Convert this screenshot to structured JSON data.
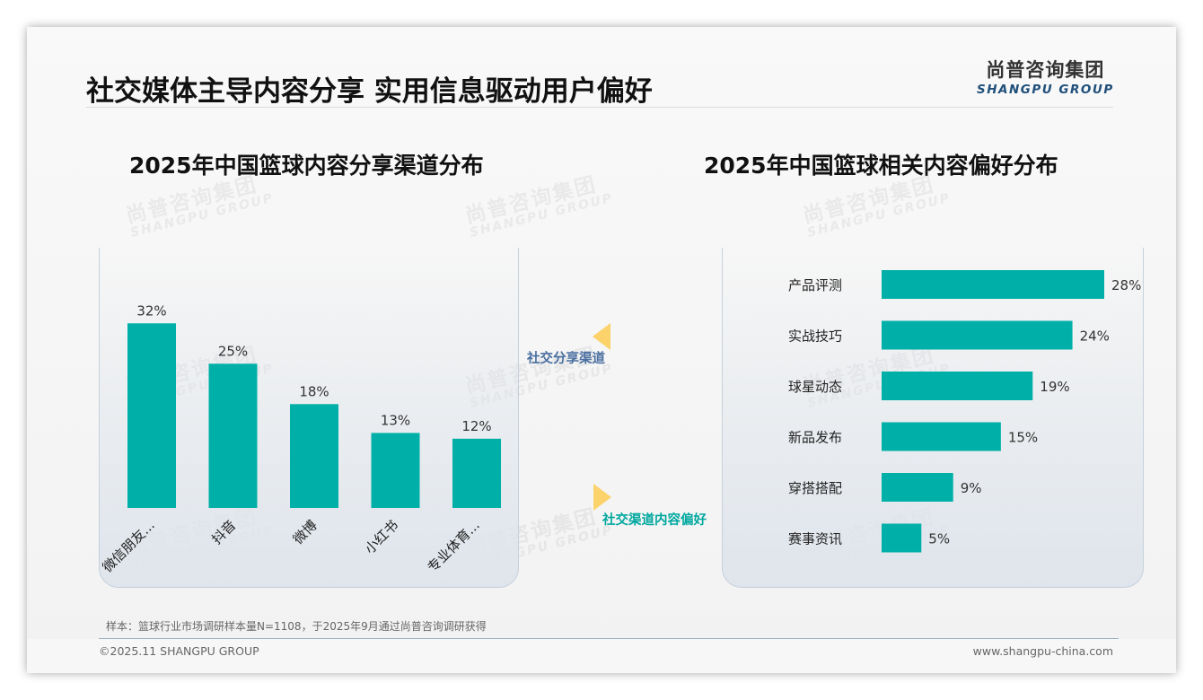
{
  "page": {
    "title": "社交媒体主导内容分享 实用信息驱动用户偏好",
    "logo_cn": "尚普咨询集团",
    "logo_en": "SHANGPU GROUP",
    "watermark_cn": "尚普咨询集团",
    "watermark_en": "SHANGPU GROUP",
    "flow_label_1": "社交分享渠道",
    "flow_label_2": "社交渠道内容偏好",
    "note": "样本：篮球行业市场调研样本量N=1108，于2025年9月通过尚普咨询调研获得",
    "footer_left": "©2025.11 SHANGPU GROUP",
    "footer_right": "www.shangpu-china.com"
  },
  "colors": {
    "bar": "#00b0a8",
    "accent_yellow": "#fcd36b",
    "flow_label_1": "#4a6fa0",
    "flow_label_2": "#00a89f"
  },
  "chart_data": [
    {
      "type": "bar",
      "title": "2025年中国篮球内容分享渠道分布",
      "categories": [
        "微信朋友...",
        "抖音",
        "微博",
        "小红书",
        "专业体育..."
      ],
      "values": [
        32,
        25,
        18,
        13,
        12
      ],
      "data_labels": [
        "32%",
        "25%",
        "18%",
        "13%",
        "12%"
      ],
      "ylim": [
        0,
        35
      ],
      "grid": false,
      "legend": "none"
    },
    {
      "type": "bar",
      "orientation": "horizontal",
      "title": "2025年中国篮球相关内容偏好分布",
      "categories": [
        "产品评测",
        "实战技巧",
        "球星动态",
        "新品发布",
        "穿搭搭配",
        "赛事资讯"
      ],
      "values": [
        28,
        24,
        19,
        15,
        9,
        5
      ],
      "data_labels": [
        "28%",
        "24%",
        "19%",
        "15%",
        "9%",
        "5%"
      ],
      "xlim": [
        0,
        28
      ],
      "grid": false,
      "legend": "none"
    }
  ]
}
